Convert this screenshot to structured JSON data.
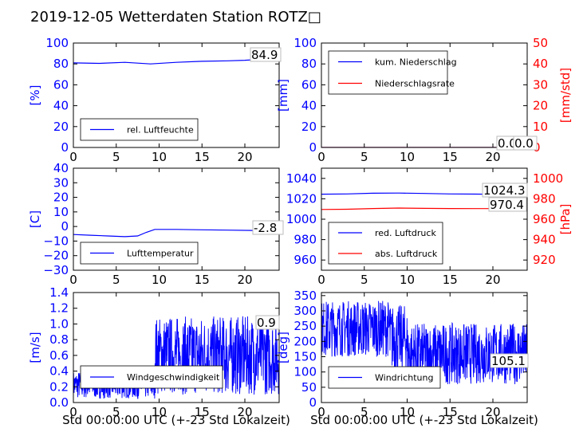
{
  "title": "2019-12-05 Wetterdaten Station ROTZ□",
  "colors": {
    "primary": "#0000ff",
    "secondary": "#ff0000",
    "wind_light": "#6a7cff",
    "text": "#000000"
  },
  "chart_data": [
    {
      "type": "line",
      "id": "humidity",
      "ylabel": "[%]",
      "ylim": [
        0,
        100
      ],
      "yticks": [
        0,
        20,
        40,
        60,
        80,
        100
      ],
      "xlim": [
        0,
        24
      ],
      "xticks": [
        0,
        5,
        10,
        15,
        20
      ],
      "series": [
        {
          "name": "rel. Luftfeuchte",
          "axis": "left",
          "color": "#0000ff",
          "points": [
            [
              0,
              81
            ],
            [
              3,
              80.5
            ],
            [
              6,
              81.5
            ],
            [
              9,
              80
            ],
            [
              12,
              81.5
            ],
            [
              15,
              82.5
            ],
            [
              18,
              83
            ],
            [
              20,
              83.5
            ],
            [
              22,
              84.5
            ],
            [
              24,
              84.9
            ]
          ]
        }
      ],
      "current_values": [
        "84.9"
      ],
      "legend": "lower-left"
    },
    {
      "type": "line",
      "id": "precipitation",
      "ylabel": "[mm]",
      "ylabel2": "[mm/std]",
      "ylim": [
        0,
        100
      ],
      "ylim2": [
        0,
        50
      ],
      "yticks": [
        0,
        20,
        40,
        60,
        80,
        100
      ],
      "yticks2": [
        0,
        10,
        20,
        30,
        40,
        50
      ],
      "xlim": [
        0,
        24
      ],
      "xticks": [
        0,
        5,
        10,
        15,
        20
      ],
      "series": [
        {
          "name": "kum. Niederschlag",
          "axis": "left",
          "color": "#0000ff",
          "points": [
            [
              0,
              0
            ],
            [
              24,
              0
            ]
          ]
        },
        {
          "name": "Niederschlagsrate",
          "axis": "right",
          "color": "#ff0000",
          "points": [
            [
              0,
              0
            ],
            [
              24,
              0
            ]
          ]
        }
      ],
      "current_values": [
        "0.0",
        "0.0"
      ],
      "legend": "upper-left"
    },
    {
      "type": "line",
      "id": "temperature",
      "ylabel": "[C]",
      "ylim": [
        -30,
        40
      ],
      "yticks": [
        -30,
        -20,
        -10,
        0,
        10,
        20,
        30,
        40
      ],
      "xlim": [
        0,
        24
      ],
      "xticks": [
        0,
        5,
        10,
        15,
        20
      ],
      "series": [
        {
          "name": "Lufttemperatur",
          "axis": "left",
          "color": "#0000ff",
          "points": [
            [
              0,
              -5.5
            ],
            [
              2,
              -6
            ],
            [
              4,
              -6.5
            ],
            [
              6,
              -7
            ],
            [
              7.5,
              -6.5
            ],
            [
              8.5,
              -4
            ],
            [
              9.5,
              -2
            ],
            [
              12,
              -2
            ],
            [
              15,
              -2.3
            ],
            [
              18,
              -2.5
            ],
            [
              21,
              -2.7
            ],
            [
              24,
              -2.8
            ]
          ]
        }
      ],
      "current_values": [
        "-2.8"
      ],
      "legend": "lower-left"
    },
    {
      "type": "line",
      "id": "pressure",
      "ylabel2": "[hPa]",
      "ylim": [
        950,
        1050
      ],
      "ylim2": [
        910,
        1010
      ],
      "yticks": [
        960,
        980,
        1000,
        1020,
        1040
      ],
      "yticks2": [
        920,
        940,
        960,
        980,
        1000
      ],
      "xlim": [
        0,
        24
      ],
      "xticks": [
        0,
        5,
        10,
        15,
        20
      ],
      "series": [
        {
          "name": "red. Luftdruck",
          "axis": "left",
          "color": "#0000ff",
          "points": [
            [
              0,
              1024.5
            ],
            [
              3,
              1024.8
            ],
            [
              6,
              1025.5
            ],
            [
              9,
              1025.6
            ],
            [
              12,
              1025.2
            ],
            [
              15,
              1024.8
            ],
            [
              18,
              1024.6
            ],
            [
              21,
              1024.4
            ],
            [
              24,
              1024.3
            ]
          ]
        },
        {
          "name": "abs. Luftdruck",
          "axis": "right",
          "color": "#ff0000",
          "points": [
            [
              0,
              969.5
            ],
            [
              3,
              969.8
            ],
            [
              6,
              970.5
            ],
            [
              9,
              970.9
            ],
            [
              12,
              970.6
            ],
            [
              15,
              970.5
            ],
            [
              18,
              970.4
            ],
            [
              21,
              970.4
            ],
            [
              24,
              970.4
            ]
          ]
        }
      ],
      "current_values": [
        "1024.3",
        "970.4"
      ],
      "legend": "lower-left"
    },
    {
      "type": "line",
      "id": "windspeed",
      "ylabel": "[m/s]",
      "ylim": [
        0,
        1.4
      ],
      "yticks": [
        0.0,
        0.2,
        0.4,
        0.6,
        0.8,
        1.0,
        1.2,
        1.4
      ],
      "xlim": [
        0,
        24
      ],
      "xticks": [
        0,
        5,
        10,
        15,
        20
      ],
      "xlabel": "Std 00:00:00 UTC (+-23 Std Lokalzeit)",
      "series": [
        {
          "name": "Windgeschwindigkeit",
          "axis": "left",
          "color": "#0000ff",
          "segments": [
            [
              0,
              9.5,
              0.05,
              0.4
            ],
            [
              9.5,
              24,
              0.1,
              1.1
            ]
          ]
        }
      ],
      "current_values": [
        "0.9"
      ],
      "legend": "lower-left"
    },
    {
      "type": "line",
      "id": "winddirection",
      "ylabel": "[deg]",
      "ylim": [
        0,
        360
      ],
      "yticks": [
        0,
        50,
        100,
        150,
        200,
        250,
        300,
        350
      ],
      "xlim": [
        0,
        24
      ],
      "xticks": [
        0,
        5,
        10,
        15,
        20
      ],
      "xlabel": "Std 00:00:00 UTC (+-23 Std Lokalzeit)",
      "series": [
        {
          "name": "Windrichtung",
          "axis": "left",
          "color": "#0000ff",
          "segments": [
            [
              0,
              8,
              150,
              335
            ],
            [
              8,
              10,
              100,
              320
            ],
            [
              10,
              24,
              60,
              260
            ]
          ]
        }
      ],
      "current_values": [
        "105.1"
      ],
      "legend": "lower-left"
    }
  ]
}
